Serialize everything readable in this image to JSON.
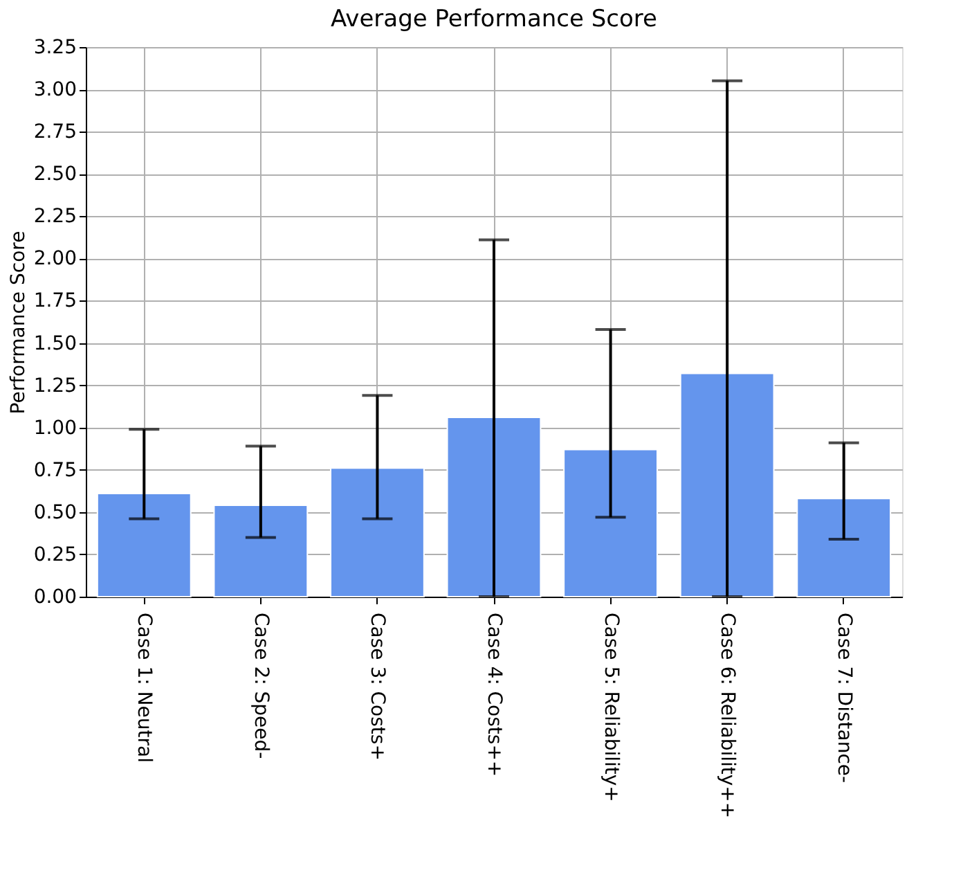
{
  "chart_data": {
    "type": "bar",
    "title": "Average Performance Score",
    "ylabel": "Performance Score",
    "categories": [
      "Case 1: Neutral",
      "Case 2: Speed-",
      "Case 3: Costs+",
      "Case 4: Costs++",
      "Case 5: Reliability+",
      "Case 6: Reliability++",
      "Case 7: Distance-"
    ],
    "values": [
      0.61,
      0.54,
      0.76,
      1.06,
      0.87,
      1.32,
      0.58
    ],
    "errors": [
      [
        0.46,
        0.99
      ],
      [
        0.35,
        0.89
      ],
      [
        0.46,
        1.19
      ],
      [
        0.0,
        2.11
      ],
      [
        0.47,
        1.58
      ],
      [
        0.0,
        3.05
      ],
      [
        0.34,
        0.91
      ]
    ],
    "color": "#6495ed",
    "ylim": [
      0,
      3.25
    ],
    "yticks": [
      {
        "value": 0,
        "label": "0.00"
      },
      {
        "value": 0.25,
        "label": "0.25"
      },
      {
        "value": 0.5,
        "label": "0.50"
      },
      {
        "value": 0.75,
        "label": "0.75"
      },
      {
        "value": 1,
        "label": "1.00"
      },
      {
        "value": 1.25,
        "label": "1.25"
      },
      {
        "value": 1.5,
        "label": "1.50"
      },
      {
        "value": 1.75,
        "label": "1.75"
      },
      {
        "value": 2,
        "label": "2.00"
      },
      {
        "value": 2.25,
        "label": "2.25"
      },
      {
        "value": 2.5,
        "label": "2.50"
      },
      {
        "value": 2.75,
        "label": "2.75"
      },
      {
        "value": 3,
        "label": "3.00"
      },
      {
        "value": 3.25,
        "label": "3.25"
      }
    ],
    "grid": true
  }
}
